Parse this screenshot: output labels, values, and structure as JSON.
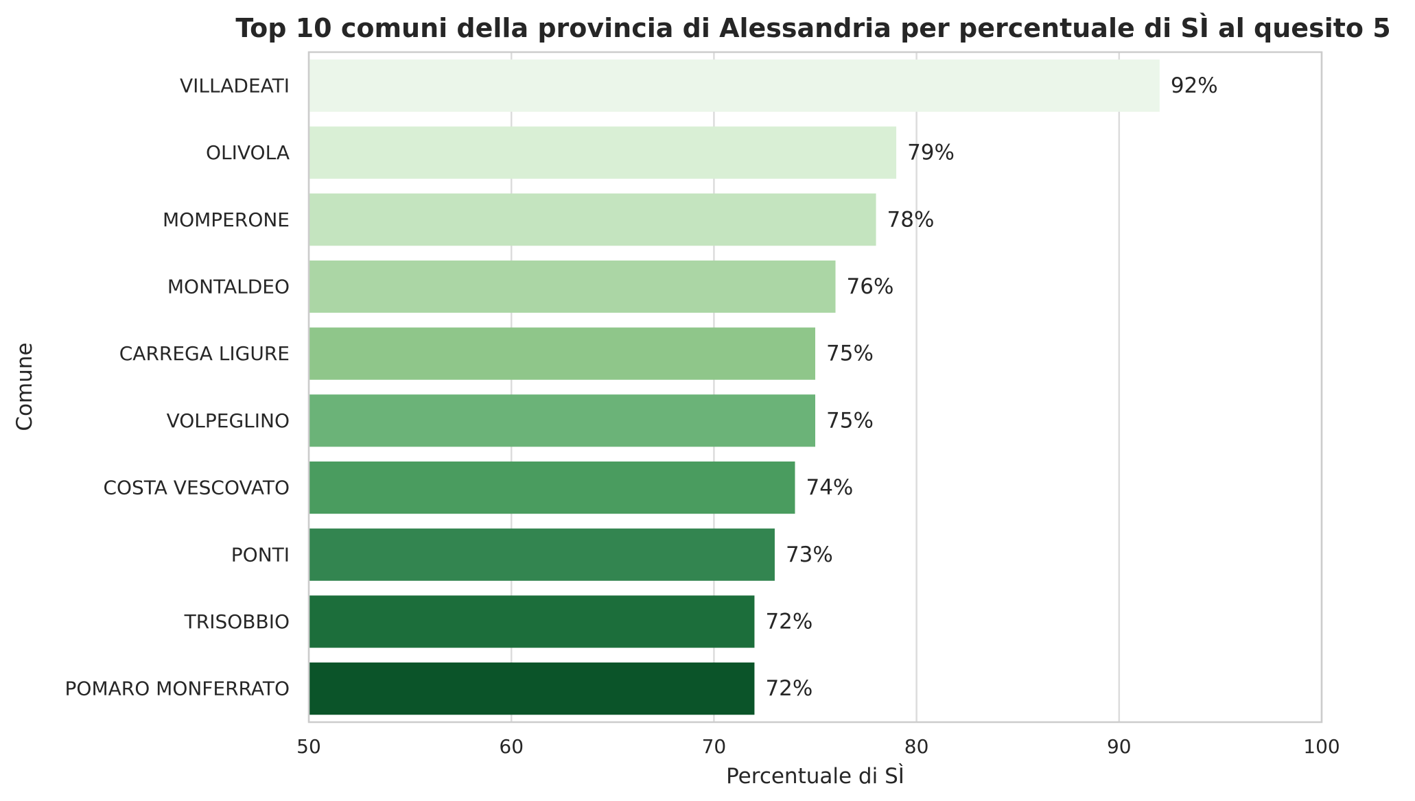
{
  "chart_data": {
    "type": "bar",
    "orientation": "horizontal",
    "title": "Top 10 comuni della provincia di Alessandria per percentuale di SÌ al quesito 5",
    "xlabel": "Percentuale di SÌ",
    "ylabel": "Comune",
    "xlim": [
      50,
      100
    ],
    "xticks": [
      50,
      60,
      70,
      80,
      90,
      100
    ],
    "categories": [
      "VILLADEATI",
      "OLIVOLA",
      "MOMPERONE",
      "MONTALDEO",
      "CARREGA LIGURE",
      "VOLPEGLINO",
      "COSTA VESCOVATO",
      "PONTI",
      "TRISOBBIO",
      "POMARO MONFERRATO"
    ],
    "values": [
      92,
      79,
      78,
      76,
      75,
      75,
      74,
      73,
      72,
      72
    ],
    "data_labels": [
      "92%",
      "79%",
      "78%",
      "76%",
      "75%",
      "75%",
      "74%",
      "73%",
      "72%",
      "72%"
    ],
    "colors": [
      "#ebf6ea",
      "#d9efd5",
      "#c4e4bf",
      "#abd6a5",
      "#8fc68a",
      "#6bb378",
      "#4a9c5f",
      "#338550",
      "#1c6e3b",
      "#0b5429"
    ],
    "grid": "vertical",
    "legend": "none"
  }
}
